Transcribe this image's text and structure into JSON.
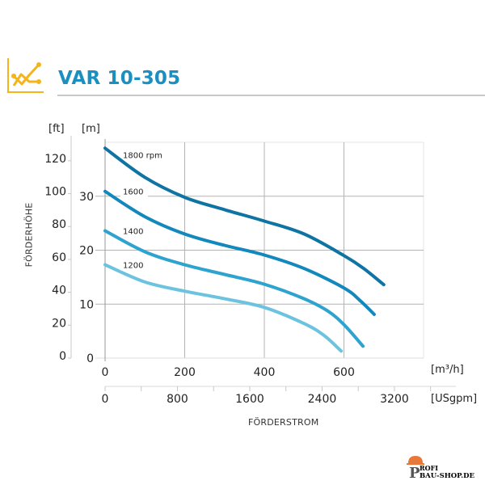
{
  "header": {
    "title": "VAR 10-305",
    "icon": "line-chart-icon",
    "icon_color": "#f4b41a",
    "title_color": "#1a8fc0"
  },
  "chart_data": {
    "type": "line",
    "title": "VAR 10-305",
    "xlabel": "FÖRDERSTROM",
    "ylabel": "FÖRDERHÖHE",
    "x_unit_primary": "[m³/h]",
    "x_unit_secondary": "[USgpm]",
    "y_unit_primary": "[m]",
    "y_unit_secondary": "[ft]",
    "xlim": [
      0,
      800
    ],
    "ylim": [
      0,
      40
    ],
    "grid": true,
    "x_ticks_primary": [
      0,
      200,
      400,
      600
    ],
    "x_ticks_secondary": [
      0,
      800,
      1600,
      2400,
      3200
    ],
    "y_ticks_primary": [
      0,
      10,
      20,
      30
    ],
    "y_ticks_secondary": [
      0,
      20,
      40,
      60,
      80,
      100,
      120
    ],
    "series": [
      {
        "name": "1800 rpm",
        "label": "1800 rpm",
        "color": "#0f74a3",
        "x": [
          0,
          100,
          200,
          300,
          400,
          500,
          600,
          650,
          700
        ],
        "y": [
          38.9,
          33.5,
          29.8,
          27.5,
          25.4,
          23.0,
          19.0,
          16.6,
          13.6
        ]
      },
      {
        "name": "1600 rpm",
        "label": "1600",
        "color": "#1388bd",
        "x": [
          0,
          100,
          200,
          300,
          400,
          500,
          600,
          640,
          676
        ],
        "y": [
          30.9,
          26.2,
          23.0,
          20.9,
          19.1,
          16.6,
          13.0,
          10.7,
          8.1
        ]
      },
      {
        "name": "1400 rpm",
        "label": "1400",
        "color": "#2ea3cf",
        "x": [
          0,
          100,
          200,
          300,
          400,
          500,
          560,
          600,
          648
        ],
        "y": [
          23.6,
          19.7,
          17.3,
          15.5,
          13.7,
          11.0,
          8.7,
          6.2,
          2.2
        ]
      },
      {
        "name": "1200 rpm",
        "label": "1200",
        "color": "#6cc3e0",
        "x": [
          0,
          100,
          200,
          300,
          400,
          500,
          550,
          593
        ],
        "y": [
          17.3,
          14.1,
          12.4,
          11.0,
          9.4,
          6.4,
          4.2,
          1.3
        ]
      }
    ]
  },
  "footer": {
    "brand_line1": "ROFI",
    "brand_line2": "BAU-SHOP.DE",
    "brand_initial": "P"
  }
}
